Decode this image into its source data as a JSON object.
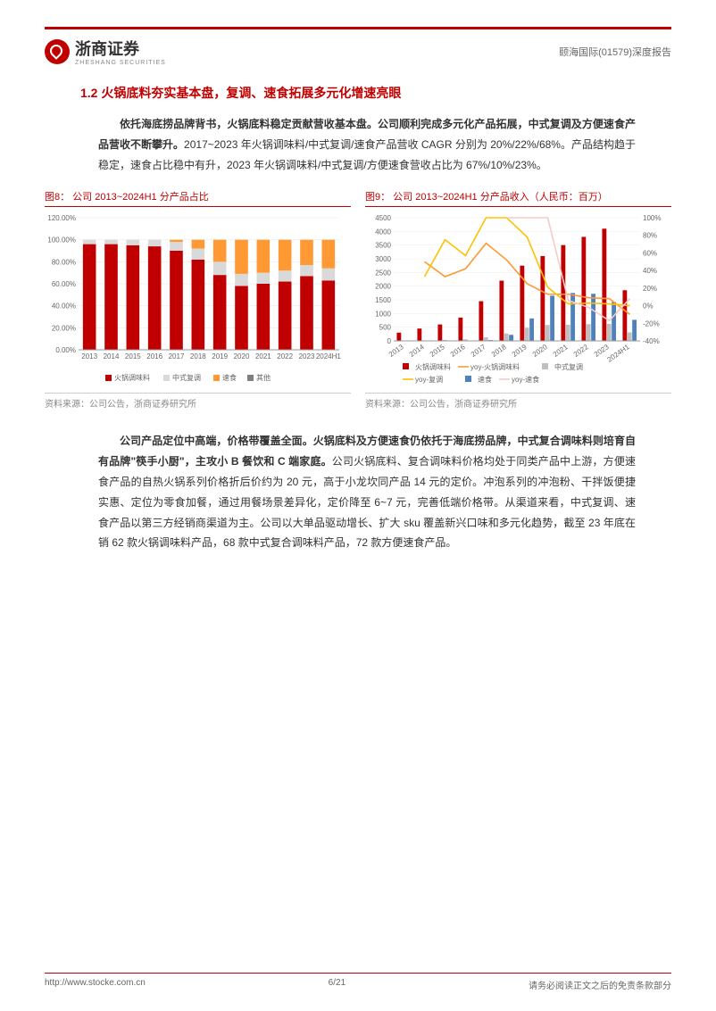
{
  "header": {
    "brand": "浙商证券",
    "brand_sub": "ZHESHANG SECURITIES",
    "doc_ref": "颐海国际(01579)深度报告"
  },
  "section": {
    "number": "1.2",
    "title": "火锅底料夯实基本盘，复调、速食拓展多元化增速亮眼"
  },
  "para1": {
    "lead": "依托海底捞品牌背书，火锅底料稳定贡献营收基本盘。公司顺利完成多元化产品拓展，中式复调及方便速食产品营收不断攀升。",
    "rest": "2017~2023 年火锅调味料/中式复调/速食产品营收 CAGR 分别为 20%/22%/68%。产品结构趋于稳定，速食占比稳中有升，2023 年火锅调味料/中式复调/方便速食营收占比为 67%/10%/23%。"
  },
  "chart8": {
    "title": "图8：  公司 2013~2024H1 分产品占比",
    "type": "stacked-bar",
    "categories": [
      "2013",
      "2014",
      "2015",
      "2016",
      "2017",
      "2018",
      "2019",
      "2020",
      "2021",
      "2022",
      "2023",
      "2024H1"
    ],
    "series": [
      {
        "name": "火锅调味料",
        "color": "#c00000",
        "values": [
          96,
          96,
          95,
          94,
          90,
          82,
          68,
          58,
          60,
          62,
          67,
          63
        ]
      },
      {
        "name": "中式复调",
        "color": "#d9d9d9",
        "values": [
          4,
          4,
          5,
          6,
          8,
          10,
          12,
          11,
          10,
          10,
          10,
          11
        ]
      },
      {
        "name": "速食",
        "color": "#ff9933",
        "values": [
          0,
          0,
          0,
          0,
          2,
          8,
          20,
          31,
          30,
          28,
          23,
          26
        ]
      },
      {
        "name": "其他",
        "color": "#7f7f7f",
        "values": [
          0,
          0,
          0,
          0,
          0,
          0,
          0,
          0,
          0,
          0,
          0,
          0
        ]
      }
    ],
    "y_ticks": [
      "0.00%",
      "20.00%",
      "40.00%",
      "60.00%",
      "80.00%",
      "100.00%",
      "120.00%"
    ],
    "legend": [
      "火锅调味料",
      "中式复调",
      "速食",
      "其他"
    ],
    "source": "资料来源：公司公告，浙商证券研究所"
  },
  "chart9": {
    "title": "图9：  公司 2013~2024H1 分产品收入（人民币：百万）",
    "type": "bar-line",
    "categories": [
      "2013",
      "2014",
      "2015",
      "2016",
      "2017",
      "2018",
      "2019",
      "2020",
      "2021",
      "2022",
      "2023",
      "2024H1"
    ],
    "bars": [
      {
        "name": "火锅调味料",
        "color": "#c00000",
        "values": [
          300,
          450,
          600,
          850,
          1450,
          2200,
          2750,
          3100,
          3500,
          3800,
          4100,
          1850
        ]
      },
      {
        "name": "中式复调",
        "color": "#bfbfbf",
        "values": [
          15,
          20,
          35,
          55,
          130,
          270,
          480,
          580,
          590,
          610,
          620,
          310
        ]
      },
      {
        "name": "速食",
        "color": "#4f81bd",
        "values": [
          0,
          0,
          0,
          0,
          30,
          220,
          820,
          1650,
          1750,
          1720,
          1420,
          770
        ]
      }
    ],
    "lines": [
      {
        "name": "yoy-火锅调味料",
        "color": "#ff9933",
        "values": [
          null,
          50,
          33,
          42,
          71,
          52,
          25,
          13,
          13,
          9,
          8,
          -10
        ]
      },
      {
        "name": "yoy-复调",
        "color": "#ffc000",
        "values": [
          null,
          33,
          75,
          57,
          136,
          108,
          78,
          21,
          2,
          3,
          2,
          0
        ]
      },
      {
        "name": "yoy-速食",
        "color": "#f7cac9",
        "values": [
          null,
          null,
          null,
          null,
          null,
          633,
          273,
          101,
          6,
          -2,
          -17,
          8
        ]
      }
    ],
    "y_left_ticks": [
      "0",
      "500",
      "1000",
      "1500",
      "2000",
      "2500",
      "3000",
      "3500",
      "4000",
      "4500"
    ],
    "y_right_ticks": [
      "-40%",
      "-20%",
      "0%",
      "20%",
      "40%",
      "60%",
      "80%",
      "100%"
    ],
    "legend_bars": [
      "火锅调味料",
      "中式复调",
      "速食"
    ],
    "legend_lines": [
      "yoy-火锅调味料",
      "yoy-复调",
      "yoy-速食"
    ],
    "source": "资料来源：公司公告，浙商证券研究所"
  },
  "para2": {
    "lead": "公司产品定位中高端，价格带覆盖全面。",
    "bold2": "火锅底料及方便速食仍依托于海底捞品牌，中式复合调味料则培育自有品牌\"筷手小厨\"，主攻小 B 餐饮和 C 端家庭。",
    "rest": "公司火锅底料、复合调味料价格均处于同类产品中上游，方便速食产品的自热火锅系列价格折后价约为 20 元，高于小龙坎同产品 14 元的定价。冲泡系列的冲泡粉、干拌饭便捷实惠、定位为零食加餐，通过用餐场景差异化，定价降至 6~7 元，完善低端价格带。从渠道来看，中式复调、速食产品以第三方经销商渠道为主。公司以大单品驱动增长、扩大 sku 覆盖新兴口味和多元化趋势，截至 23 年底在销 62 款火锅调味料产品，68 款中式复合调味料产品，72 款方便速食产品。"
  },
  "footer": {
    "url": "http://www.stocke.com.cn",
    "page": "6/21",
    "disclaimer": "请务必阅读正文之后的免责条款部分"
  },
  "colors": {
    "brand_red": "#c00000",
    "orange": "#ff9933",
    "grey": "#d9d9d9",
    "darkgrey": "#7f7f7f",
    "blue": "#4f81bd",
    "yellow": "#ffc000",
    "pink": "#f7cac9"
  }
}
